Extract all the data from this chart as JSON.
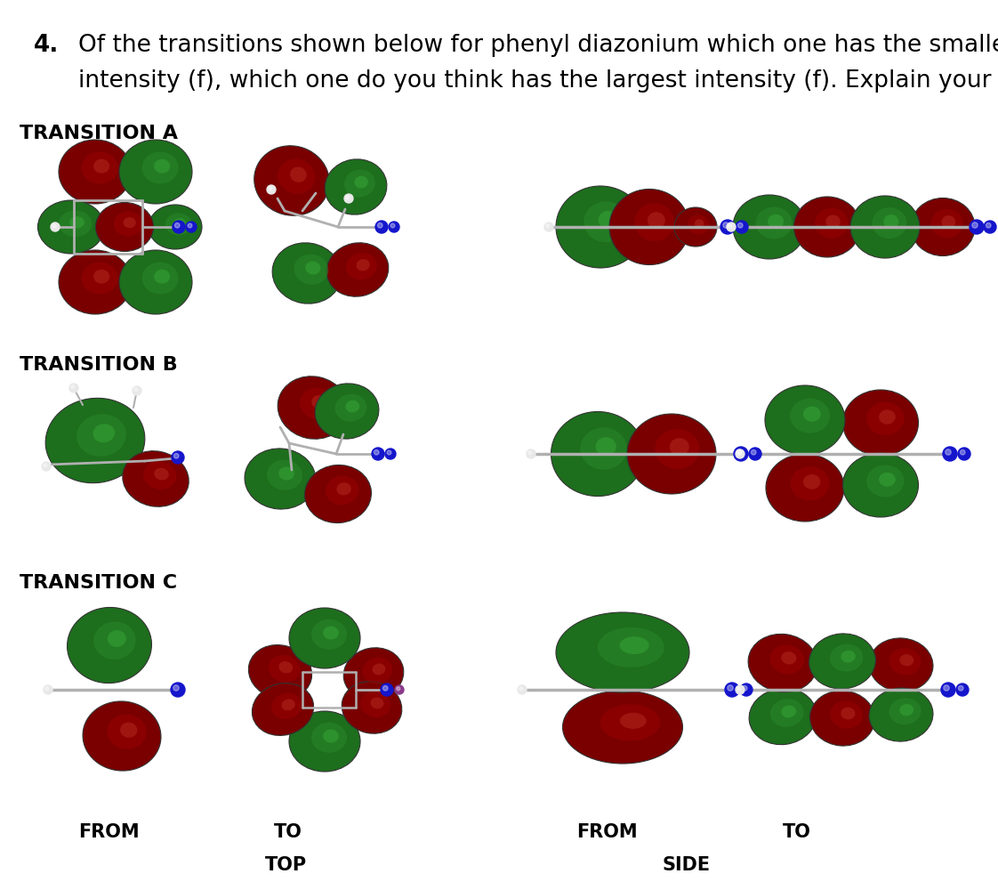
{
  "title_num": "4.",
  "title_text_line1": "Of the transitions shown below for phenyl diazonium which one has the smallest",
  "title_text_line2": "intensity (f), which one do you think has the largest intensity (f). Explain your reasoning.",
  "transition_labels": [
    "TRANSITION A",
    "TRANSITION B",
    "TRANSITION C"
  ],
  "col_labels_row1": [
    "FROM",
    "TO",
    "FROM",
    "TO"
  ],
  "col_labels_row2_left": "TOP",
  "col_labels_row2_right": "SIDE",
  "background_color": "#ffffff",
  "text_color": "#000000",
  "green_dark": "#1d6e1d",
  "green_mid": "#2a8a2a",
  "green_light": "#3db33d",
  "red_dark": "#7a0000",
  "red_mid": "#9b0000",
  "red_light": "#c0392b",
  "stem_color": "#b0b0b0",
  "blue_color": "#1515cc",
  "white_atom": "#e8e8e8",
  "purple_color": "#8b3a8b"
}
